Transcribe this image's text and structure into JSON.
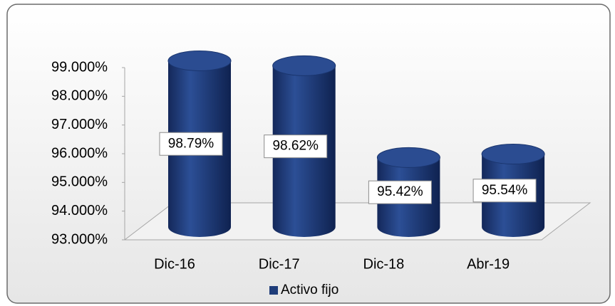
{
  "chart_data": {
    "type": "bar3d",
    "categories": [
      "Dic-16",
      "Dic-17",
      "Dic-18",
      "Abr-19"
    ],
    "series": [
      {
        "name": "Activo fijo",
        "color": "#1f3d7a",
        "values": [
          98.79,
          98.62,
          95.42,
          95.54
        ],
        "value_labels": [
          "98.79%",
          "98.62%",
          "95.42%",
          "95.54%"
        ]
      }
    ],
    "ylim": [
      93,
      99
    ],
    "yticks": [
      {
        "value": 93,
        "label": "93.000%"
      },
      {
        "value": 94,
        "label": "94.000%"
      },
      {
        "value": 95,
        "label": "95.000%"
      },
      {
        "value": 96,
        "label": "96.000%"
      },
      {
        "value": 97,
        "label": "97.000%"
      },
      {
        "value": 98,
        "label": "98.000%"
      },
      {
        "value": 99,
        "label": "99.000%"
      }
    ],
    "legend": "bottom"
  }
}
